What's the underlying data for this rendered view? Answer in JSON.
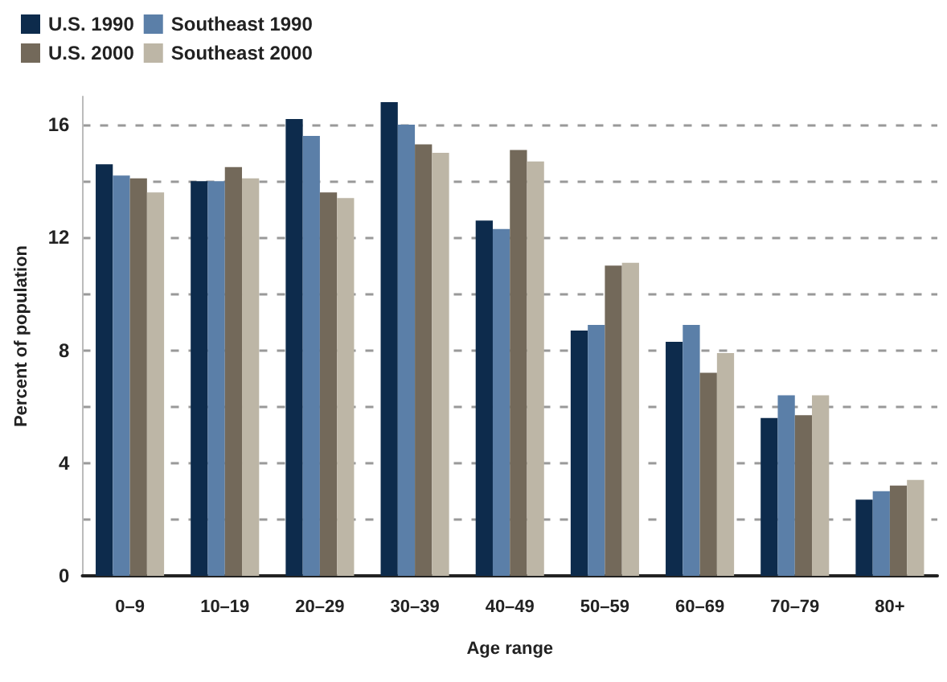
{
  "chart_data": {
    "type": "bar",
    "xlabel": "Age range",
    "ylabel": "Percent of population",
    "categories": [
      "0–9",
      "10–19",
      "20–29",
      "30–39",
      "40–49",
      "50–59",
      "60–69",
      "70–79",
      "80+"
    ],
    "series": [
      {
        "name": "U.S. 1990",
        "color": "#0d2b4c",
        "values": [
          14.6,
          14.0,
          16.2,
          16.8,
          12.6,
          8.7,
          8.3,
          5.6,
          2.7
        ]
      },
      {
        "name": "Southeast 1990",
        "color": "#5b7fa8",
        "values": [
          14.2,
          14.0,
          15.6,
          16.0,
          12.3,
          8.9,
          8.9,
          6.4,
          3.0
        ]
      },
      {
        "name": "U.S. 2000",
        "color": "#73695a",
        "values": [
          14.1,
          14.5,
          13.6,
          15.3,
          15.1,
          11.0,
          7.2,
          5.7,
          3.2
        ]
      },
      {
        "name": "Southeast 2000",
        "color": "#bdb6a6",
        "values": [
          13.6,
          14.1,
          13.4,
          15.0,
          14.7,
          11.1,
          7.9,
          6.4,
          3.4
        ]
      }
    ],
    "ylim": [
      0,
      17
    ],
    "yticks": [
      0,
      {
        "value": 2,
        "label": null
      },
      4,
      {
        "value": 6,
        "label": null
      },
      8,
      {
        "value": 10,
        "label": null
      },
      12,
      {
        "value": 14,
        "label": null
      },
      16
    ],
    "grid": "y",
    "legend": "top left"
  }
}
